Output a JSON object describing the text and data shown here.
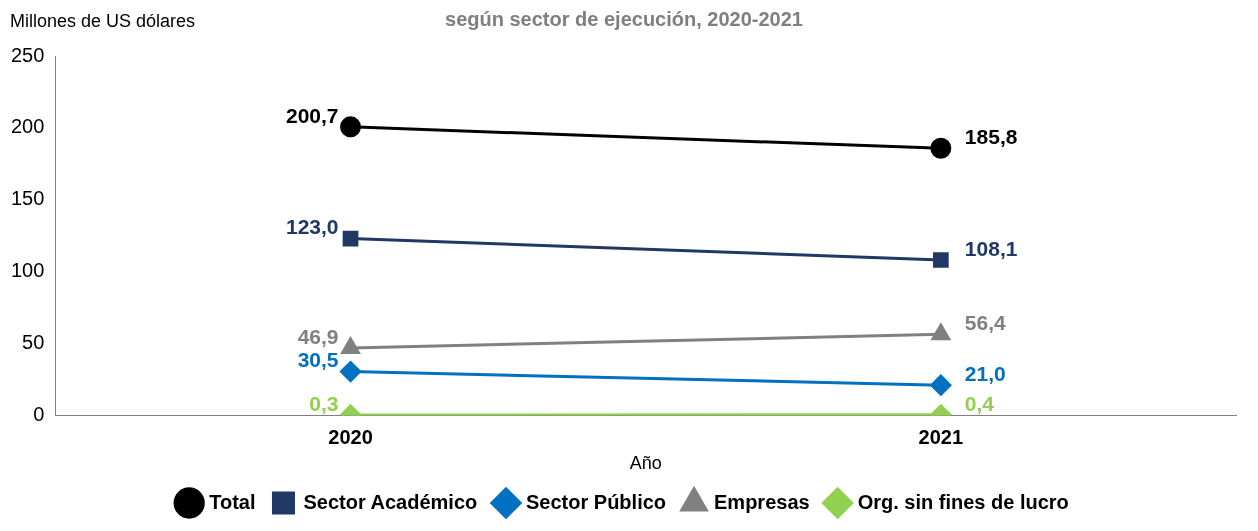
{
  "chart_data": {
    "type": "line",
    "title": "según sector de ejecución, 2020-2021",
    "ylabel": "Millones de US dólares",
    "xlabel": "Año",
    "categories": [
      "2020",
      "2021"
    ],
    "series": [
      {
        "name": "Total",
        "color": "#000000",
        "values": [
          200.7,
          185.8
        ],
        "value_labels": [
          "200,7",
          "185,8"
        ],
        "marker": "circle"
      },
      {
        "name": "Sector Académico",
        "color": "#1f3864",
        "values": [
          123.0,
          108.1
        ],
        "value_labels": [
          "123,0",
          "108,1"
        ],
        "marker": "square"
      },
      {
        "name": "Sector Público",
        "color": "#0070c0",
        "values": [
          30.5,
          21.0
        ],
        "value_labels": [
          "30,5",
          "21,0"
        ],
        "marker": "diamond"
      },
      {
        "name": "Empresas",
        "color": "#808080",
        "values": [
          46.9,
          56.4
        ],
        "value_labels": [
          "46,9",
          "56,4"
        ],
        "marker": "triangle"
      },
      {
        "name": "Org. sin fines de lucro",
        "color": "#92d050",
        "values": [
          0.3,
          0.4
        ],
        "value_labels": [
          "0,3",
          "0,4"
        ],
        "marker": "diamond"
      }
    ],
    "ylim": [
      0,
      250
    ],
    "yticks": [
      0,
      50,
      100,
      150,
      200,
      250
    ],
    "grid": false,
    "legend": "bottom",
    "line_style": "solid"
  }
}
